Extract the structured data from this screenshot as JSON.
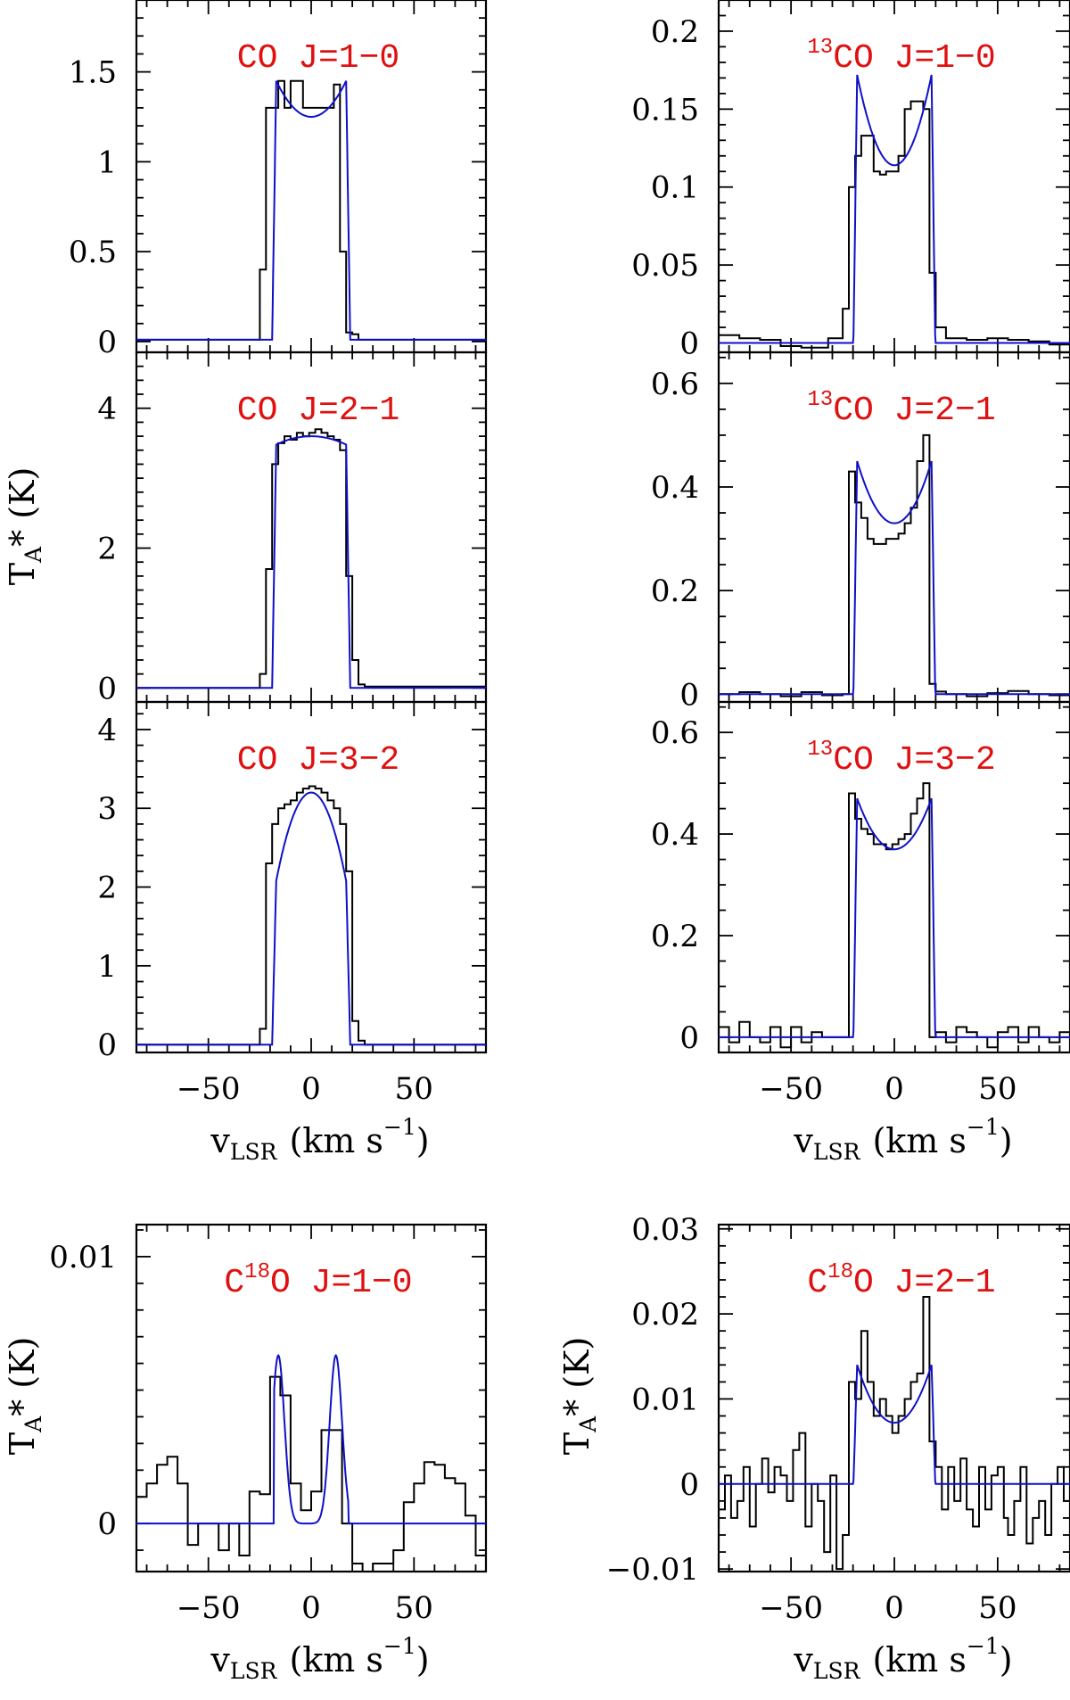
{
  "chart_data": [
    {
      "type": "line",
      "title": "CO J=1−0",
      "label_main": "CO J=1−0",
      "ylim": [
        -0.06,
        1.9
      ],
      "xlim": [
        -85,
        85
      ],
      "yticks": [
        0,
        0.5,
        1,
        1.5
      ],
      "ytick_labels": [
        "0",
        "0.5",
        "1",
        "1.5"
      ],
      "yminor": 0.1,
      "series": [
        {
          "name": "observed",
          "style": "histogram",
          "x": [
            -85,
            -28,
            -25,
            -22,
            -19,
            -16,
            -13,
            -10,
            -7,
            -4,
            -1,
            2,
            5,
            8,
            11,
            14,
            17,
            20,
            23,
            26,
            85
          ],
          "y": [
            0.01,
            0.01,
            0.4,
            1.3,
            1.3,
            1.45,
            1.3,
            1.45,
            1.45,
            1.3,
            1.3,
            1.3,
            1.3,
            1.3,
            1.43,
            0.5,
            0.05,
            0.04,
            0.01,
            0.01,
            0.01
          ]
        },
        {
          "name": "model",
          "style": "line",
          "model": {
            "peak": 1.45,
            "center": 1.25,
            "width": 17,
            "edge": 2,
            "base": 0.01
          }
        }
      ]
    },
    {
      "type": "line",
      "title": "13CO J=1−0",
      "label_sup": "13",
      "label_main": "CO J=1−0",
      "ylim": [
        -0.006,
        0.22
      ],
      "xlim": [
        -85,
        85
      ],
      "yticks": [
        0,
        0.05,
        0.1,
        0.15,
        0.2
      ],
      "ytick_labels": [
        "0",
        "0.05",
        "0.1",
        "0.15",
        "0.2"
      ],
      "yminor": 0.01,
      "series": [
        {
          "name": "observed",
          "style": "histogram",
          "x": [
            -85,
            -75,
            -65,
            -55,
            -45,
            -32,
            -25,
            -22,
            -19,
            -16,
            -13,
            -10,
            -7,
            -4,
            -1,
            2,
            5,
            8,
            11,
            14,
            17,
            20,
            25,
            35,
            45,
            55,
            65,
            75,
            85
          ],
          "y": [
            0.005,
            0.003,
            0.002,
            -0.002,
            -0.003,
            0.003,
            0.022,
            0.1,
            0.12,
            0.133,
            0.133,
            0.11,
            0.108,
            0.11,
            0.11,
            0.12,
            0.15,
            0.155,
            0.155,
            0.15,
            0.045,
            0.01,
            0.003,
            0.002,
            0.003,
            0.002,
            0.001,
            -0.001,
            0.0
          ]
        },
        {
          "name": "model",
          "style": "line",
          "model": {
            "peak": 0.172,
            "center": 0.114,
            "width": 18,
            "edge": 1.8,
            "base": 0.0
          }
        }
      ]
    },
    {
      "type": "line",
      "title": "CO J=2−1",
      "label_main": "CO J=2−1",
      "ylim": [
        -0.2,
        4.8
      ],
      "xlim": [
        -85,
        85
      ],
      "yticks": [
        0,
        2,
        4
      ],
      "ytick_labels": [
        "0",
        "2",
        "4"
      ],
      "yminor": 0.2,
      "series": [
        {
          "name": "observed",
          "style": "histogram",
          "x": [
            -85,
            -25,
            -22,
            -19,
            -16,
            -13,
            -10,
            -7,
            -4,
            -1,
            2,
            5,
            8,
            11,
            14,
            17,
            20,
            23,
            26,
            85
          ],
          "y": [
            0.0,
            0.2,
            1.7,
            3.2,
            3.5,
            3.6,
            3.55,
            3.65,
            3.6,
            3.65,
            3.7,
            3.65,
            3.6,
            3.55,
            3.4,
            1.6,
            0.4,
            0.05,
            0.02,
            0.0
          ]
        },
        {
          "name": "model",
          "style": "line",
          "model": {
            "peak": 3.48,
            "center": 3.6,
            "width": 17,
            "edge": 2,
            "base": 0.0
          }
        }
      ]
    },
    {
      "type": "line",
      "title": "13CO J=2−1",
      "label_sup": "13",
      "label_main": "CO J=2−1",
      "ylim": [
        -0.015,
        0.66
      ],
      "xlim": [
        -85,
        85
      ],
      "yticks": [
        0,
        0.2,
        0.4,
        0.6
      ],
      "ytick_labels": [
        "0",
        "0.2",
        "0.4",
        "0.6"
      ],
      "yminor": 0.05,
      "series": [
        {
          "name": "observed",
          "style": "histogram",
          "x": [
            -85,
            -75,
            -65,
            -55,
            -45,
            -35,
            -25,
            -22,
            -19,
            -16,
            -13,
            -10,
            -7,
            -4,
            -1,
            2,
            5,
            8,
            11,
            14,
            17,
            20,
            25,
            35,
            45,
            55,
            65,
            75,
            85
          ],
          "y": [
            0.0,
            0.004,
            0.0,
            -0.004,
            0.004,
            -0.002,
            0.0,
            0.43,
            0.37,
            0.34,
            0.3,
            0.29,
            0.29,
            0.3,
            0.3,
            0.31,
            0.33,
            0.36,
            0.45,
            0.5,
            0.02,
            0.005,
            0.0,
            -0.004,
            0.002,
            0.006,
            0.0,
            -0.002,
            0.0
          ]
        },
        {
          "name": "model",
          "style": "line",
          "model": {
            "peak": 0.45,
            "center": 0.33,
            "width": 18,
            "edge": 1.8,
            "base": 0.0
          }
        }
      ]
    },
    {
      "type": "line",
      "title": "CO J=3−2",
      "label_main": "CO J=3−2",
      "ylim": [
        -0.1,
        4.35
      ],
      "xlim": [
        -85,
        85
      ],
      "yticks": [
        0,
        1,
        2,
        3,
        4
      ],
      "ytick_labels": [
        "0",
        "1",
        "2",
        "3",
        "4"
      ],
      "yminor": 0.2,
      "series": [
        {
          "name": "observed",
          "style": "histogram",
          "x": [
            -85,
            -25,
            -22,
            -19,
            -16,
            -13,
            -10,
            -7,
            -4,
            -1,
            2,
            5,
            8,
            11,
            14,
            17,
            20,
            23,
            26,
            85
          ],
          "y": [
            0.0,
            0.2,
            2.3,
            2.8,
            3.0,
            3.05,
            3.1,
            3.2,
            3.25,
            3.28,
            3.25,
            3.2,
            3.1,
            3.0,
            2.8,
            2.2,
            0.3,
            0.05,
            0.0,
            0.0
          ]
        },
        {
          "name": "model",
          "style": "line",
          "model": {
            "peak": 3.2,
            "center": 3.2,
            "width": 17,
            "edge": 2,
            "base": 0.0,
            "shape": "parabolic"
          }
        }
      ]
    },
    {
      "type": "line",
      "title": "13CO J=3−2",
      "label_sup": "13",
      "label_main": "CO J=3−2",
      "ylim": [
        -0.03,
        0.66
      ],
      "xlim": [
        -85,
        85
      ],
      "yticks": [
        0,
        0.2,
        0.4,
        0.6
      ],
      "ytick_labels": [
        "0",
        "0.2",
        "0.4",
        "0.6"
      ],
      "yminor": 0.05,
      "series": [
        {
          "name": "observed",
          "style": "histogram",
          "x": [
            -85,
            -80,
            -75,
            -70,
            -65,
            -60,
            -55,
            -50,
            -45,
            -40,
            -35,
            -25,
            -22,
            -19,
            -16,
            -13,
            -10,
            -7,
            -4,
            -1,
            2,
            5,
            8,
            11,
            14,
            17,
            20,
            25,
            30,
            35,
            40,
            45,
            50,
            55,
            60,
            65,
            70,
            75,
            80,
            85
          ],
          "y": [
            0.02,
            -0.01,
            0.03,
            0.0,
            -0.01,
            0.02,
            -0.02,
            0.02,
            -0.01,
            0.01,
            0.0,
            0.0,
            0.48,
            0.43,
            0.41,
            0.4,
            0.38,
            0.38,
            0.37,
            0.38,
            0.39,
            0.4,
            0.44,
            0.47,
            0.5,
            0.0,
            0.01,
            -0.01,
            0.02,
            0.01,
            0.0,
            -0.02,
            0.01,
            0.02,
            -0.01,
            0.02,
            0.0,
            -0.01,
            0.01,
            0.0
          ]
        },
        {
          "name": "model",
          "style": "line",
          "model": {
            "peak": 0.47,
            "center": 0.37,
            "width": 18,
            "edge": 1.8,
            "base": 0.0
          }
        }
      ]
    },
    {
      "type": "line",
      "title": "C18O J=1−0",
      "label_pre": "C",
      "label_sup": "18",
      "label_main": "O J=1−0",
      "ylim": [
        -0.0018,
        0.0112
      ],
      "xlim": [
        -85,
        85
      ],
      "yticks": [
        0,
        0.01
      ],
      "ytick_labels": [
        "0",
        "0.01"
      ],
      "yminor": 0.001,
      "series": [
        {
          "name": "observed",
          "style": "histogram",
          "x": [
            -85,
            -80,
            -75,
            -70,
            -65,
            -60,
            -55,
            -50,
            -45,
            -40,
            -35,
            -30,
            -25,
            -20,
            -15,
            -10,
            -5,
            0,
            5,
            10,
            15,
            20,
            25,
            30,
            35,
            40,
            45,
            50,
            55,
            60,
            65,
            70,
            75,
            80,
            85
          ],
          "y": [
            0.001,
            0.0015,
            0.0022,
            0.0025,
            0.0015,
            -0.0008,
            0.0,
            0.0,
            -0.001,
            0.0,
            -0.0012,
            0.0012,
            0.0011,
            0.0055,
            0.0048,
            0.0015,
            0.0005,
            0.0012,
            0.0035,
            0.0035,
            0.0,
            -0.0015,
            -0.0018,
            -0.0015,
            -0.0015,
            -0.001,
            0.0008,
            0.0015,
            0.0023,
            0.0022,
            0.0017,
            0.0015,
            0.0003,
            -0.0012,
            -0.0005
          ]
        },
        {
          "name": "model",
          "style": "line",
          "model": {
            "type": "gauss2",
            "amp": 0.0063,
            "c1": -16,
            "c2": 12,
            "sigma": 3.0,
            "v0": 18,
            "base": 0.0
          }
        }
      ]
    },
    {
      "type": "line",
      "title": "C18O J=2−1",
      "label_pre": "C",
      "label_sup": "18",
      "label_main": "O J=2−1",
      "ylim": [
        -0.0103,
        0.0305
      ],
      "xlim": [
        -85,
        85
      ],
      "yticks": [
        -0.01,
        0,
        0.01,
        0.02,
        0.03
      ],
      "ytick_labels": [
        "−0.01",
        "0",
        "0.01",
        "0.02",
        "0.03"
      ],
      "yminor": 0.002,
      "series": [
        {
          "name": "observed",
          "style": "histogram",
          "x": [
            -85,
            -82,
            -79,
            -76,
            -73,
            -70,
            -67,
            -64,
            -61,
            -58,
            -55,
            -52,
            -49,
            -46,
            -43,
            -40,
            -37,
            -34,
            -31,
            -28,
            -25,
            -22,
            -19,
            -16,
            -13,
            -10,
            -7,
            -4,
            -1,
            2,
            5,
            8,
            11,
            14,
            17,
            20,
            23,
            26,
            29,
            32,
            35,
            38,
            41,
            44,
            47,
            50,
            53,
            55,
            58,
            61,
            64,
            67,
            70,
            73,
            76,
            79,
            82,
            85
          ],
          "y": [
            -0.003,
            0.001,
            -0.004,
            -0.002,
            0.002,
            -0.005,
            0.0,
            0.003,
            -0.001,
            0.002,
            0.001,
            -0.002,
            0.004,
            0.006,
            -0.005,
            0.0,
            -0.002,
            -0.008,
            0.001,
            -0.01,
            -0.006,
            0.012,
            0.01,
            0.018,
            0.012,
            0.008,
            0.01,
            0.008,
            0.006,
            0.008,
            0.01,
            0.012,
            0.013,
            0.022,
            0.005,
            0.002,
            -0.003,
            0.002,
            -0.002,
            0.003,
            -0.003,
            -0.005,
            0.002,
            -0.003,
            0.001,
            0.002,
            -0.004,
            -0.006,
            -0.002,
            0.002,
            -0.007,
            -0.004,
            -0.002,
            -0.006,
            0.0,
            0.002,
            -0.002,
            0.003
          ]
        },
        {
          "name": "model",
          "style": "line",
          "model": {
            "peak": 0.014,
            "center": 0.0072,
            "width": 18,
            "edge": 1.8,
            "base": 0.0
          }
        }
      ]
    }
  ],
  "axes": {
    "xticks": [
      -50,
      0,
      50
    ],
    "xtick_labels": [
      "−50",
      "0",
      "50"
    ],
    "xminor": 10,
    "xlabel_main": "v",
    "xlabel_sub": "LSR",
    "xlabel_unit": "(km s",
    "xlabel_exp": "−1",
    "xlabel_close": ")",
    "ylabel_main": "T",
    "ylabel_sub": "A",
    "ylabel_rest": "* (K)"
  },
  "colors": {
    "observed": "#000000",
    "model": "#1010c8",
    "label": "#e01010"
  }
}
